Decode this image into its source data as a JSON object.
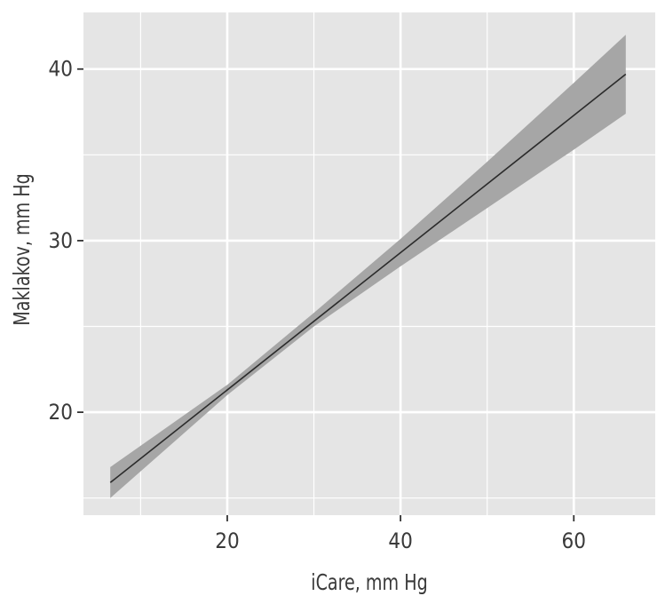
{
  "chart_data": {
    "type": "line",
    "title": "",
    "xlabel": "iCare, mm Hg",
    "ylabel": "Maklakov, mm Hg",
    "xlim": [
      3.4,
      69.4
    ],
    "ylim": [
      14.0,
      43.3
    ],
    "x_major_ticks": [
      20,
      40,
      60
    ],
    "x_minor_ticks": [
      10,
      30,
      50
    ],
    "y_major_ticks": [
      20,
      30,
      40
    ],
    "y_minor_ticks": [
      15,
      25,
      35
    ],
    "x_tick_labels": [
      "20",
      "40",
      "60"
    ],
    "y_tick_labels": [
      "20",
      "30",
      "40"
    ],
    "grid": true,
    "legend": "none",
    "series": [
      {
        "x": [
          6.5,
          66
        ],
        "y": [
          15.9,
          39.7
        ],
        "ci_lower": [
          [
            6.5,
            15.0
          ],
          [
            20,
            21.0
          ],
          [
            30,
            25.0
          ],
          [
            40,
            28.5
          ],
          [
            50,
            31.9
          ],
          [
            60,
            35.3
          ],
          [
            66,
            37.4
          ]
        ],
        "ci_upper": [
          [
            6.5,
            16.8
          ],
          [
            20,
            21.6
          ],
          [
            30,
            25.8
          ],
          [
            40,
            30.1
          ],
          [
            50,
            34.6
          ],
          [
            60,
            39.2
          ],
          [
            66,
            42.0
          ]
        ]
      }
    ],
    "colors": {
      "panel_background": "#e5e5e5",
      "grid_line": "#ffffff",
      "ribbon": "#a6a6a6",
      "line": "#2b2b2b",
      "text": "#3a3a3a"
    }
  }
}
